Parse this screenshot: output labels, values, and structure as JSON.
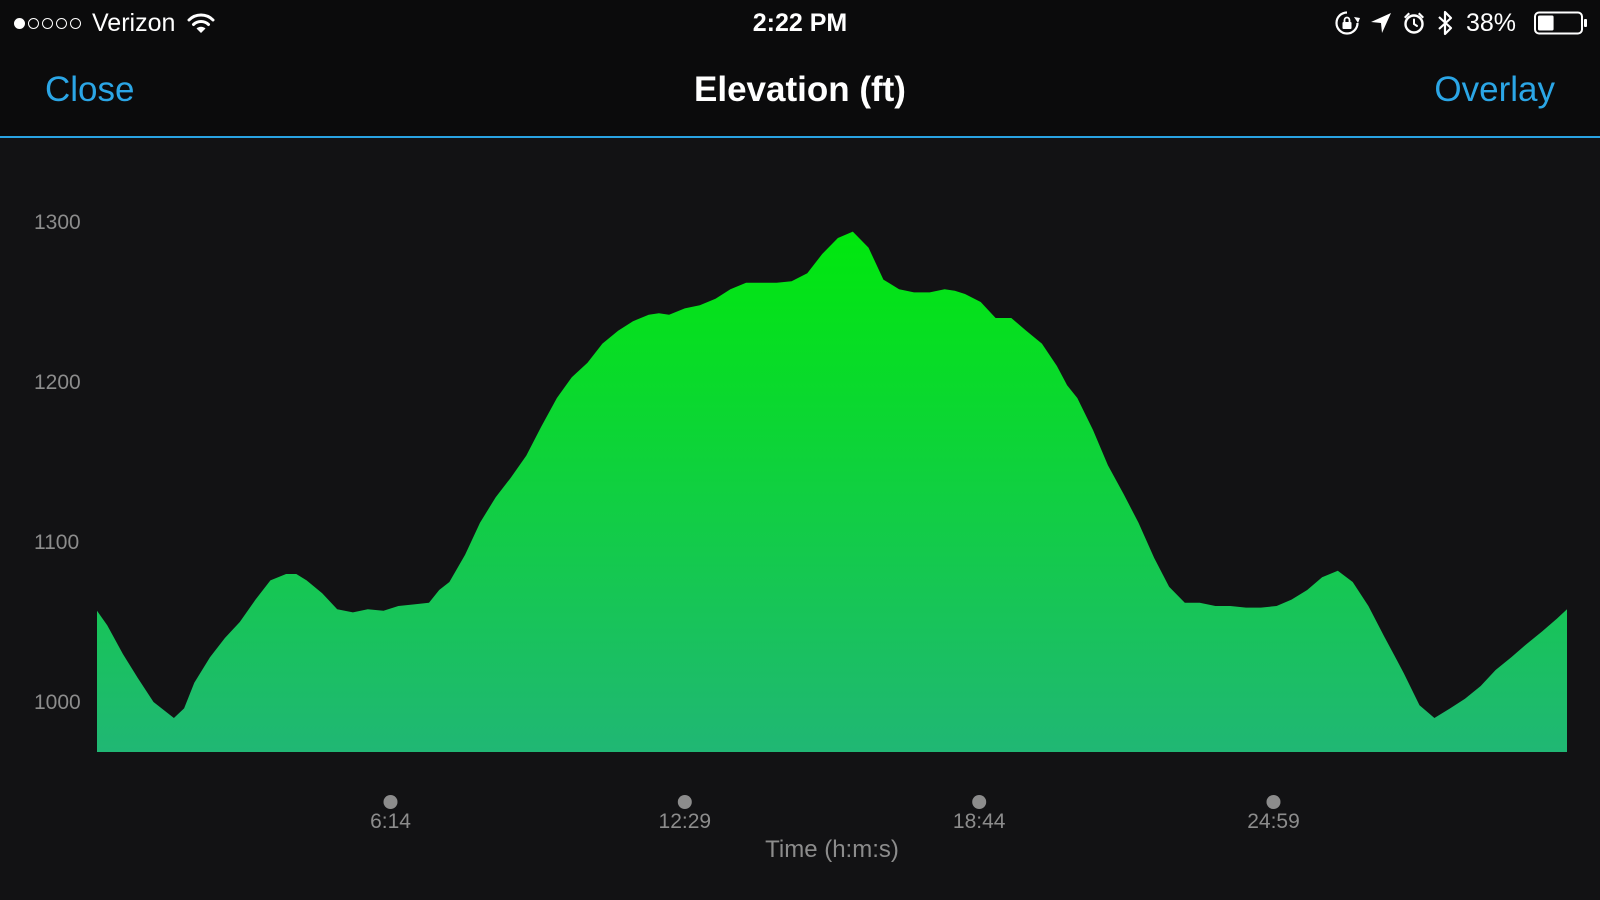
{
  "status_bar": {
    "carrier": "Verizon",
    "signal_bars_filled": 1,
    "signal_bars_total": 5,
    "time": "2:22 PM",
    "battery_percent": "38%",
    "battery_level": 0.38,
    "icons": [
      "wifi-icon",
      "rotation-lock-icon",
      "location-arrow-icon",
      "alarm-clock-icon",
      "bluetooth-icon",
      "battery-icon"
    ]
  },
  "nav": {
    "close_label": "Close",
    "title": "Elevation (ft)",
    "overlay_label": "Overlay"
  },
  "colors": {
    "accent": "#2ba6e6",
    "background": "#121214",
    "bar_background": "#0b0b0c",
    "fill_top": "#00e80d",
    "fill_bottom": "#20b774",
    "label": "#8c8c8c"
  },
  "chart_data": {
    "type": "area",
    "title": "Elevation (ft)",
    "xlabel": "Time (h:m:s)",
    "ylabel": "",
    "x_ticks": [
      {
        "label": "6:14",
        "seconds": 374
      },
      {
        "label": "12:29",
        "seconds": 749
      },
      {
        "label": "18:44",
        "seconds": 1124
      },
      {
        "label": "24:59",
        "seconds": 1499
      }
    ],
    "y_ticks": [
      1000,
      1100,
      1200,
      1300
    ],
    "xlim": [
      0,
      1873
    ],
    "ylim": [
      968,
      1300
    ],
    "grid": false,
    "legend": "none",
    "series": [
      {
        "x": [
          0,
          13,
          33,
          52,
          72,
          98,
          111,
          124,
          144,
          163,
          182,
          202,
          221,
          241,
          254,
          267,
          287,
          306,
          326,
          345,
          365,
          384,
          404,
          423,
          436,
          449,
          469,
          488,
          508,
          527,
          547,
          566,
          586,
          605,
          625,
          644,
          664,
          683,
          703,
          716,
          729,
          749,
          768,
          788,
          807,
          827,
          846,
          866,
          885,
          905,
          924,
          944,
          963,
          983,
          1002,
          1022,
          1041,
          1061,
          1080,
          1093,
          1106,
          1126,
          1145,
          1165,
          1184,
          1204,
          1223,
          1236,
          1249,
          1269,
          1288,
          1308,
          1327,
          1347,
          1366,
          1386,
          1405,
          1425,
          1444,
          1464,
          1483,
          1503,
          1522,
          1542,
          1561,
          1581,
          1600,
          1620,
          1639,
          1652,
          1665,
          1685,
          1704,
          1724,
          1743,
          1763,
          1782,
          1802,
          1821,
          1841,
          1860,
          1873
        ],
        "y": [
          1057,
          1048,
          1030,
          1015,
          1000,
          990,
          996,
          1012,
          1028,
          1040,
          1050,
          1064,
          1076,
          1080,
          1080,
          1076,
          1068,
          1058,
          1056,
          1058,
          1057,
          1060,
          1061,
          1062,
          1070,
          1075,
          1092,
          1112,
          1128,
          1140,
          1154,
          1172,
          1190,
          1203,
          1212,
          1224,
          1232,
          1238,
          1242,
          1243,
          1242,
          1246,
          1248,
          1252,
          1258,
          1262,
          1262,
          1262,
          1263,
          1268,
          1280,
          1290,
          1294,
          1284,
          1264,
          1258,
          1256,
          1256,
          1258,
          1257,
          1255,
          1250,
          1240,
          1240,
          1232,
          1224,
          1210,
          1198,
          1190,
          1170,
          1148,
          1130,
          1112,
          1090,
          1072,
          1062,
          1062,
          1060,
          1060,
          1059,
          1059,
          1060,
          1064,
          1070,
          1078,
          1082,
          1075,
          1060,
          1042,
          1030,
          1018,
          998,
          990,
          996,
          1002,
          1010,
          1020,
          1028,
          1036,
          1044,
          1052,
          1058
        ]
      }
    ]
  }
}
